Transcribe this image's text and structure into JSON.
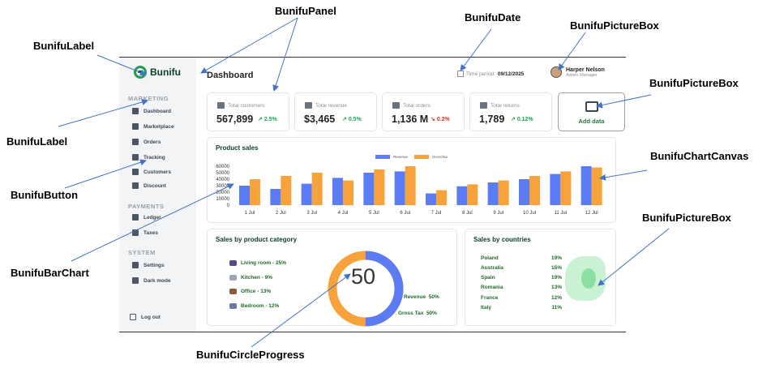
{
  "annotations": [
    {
      "id": "panel",
      "label": "BunifuPanel"
    },
    {
      "id": "date",
      "label": "BunifuDate"
    },
    {
      "id": "label1",
      "label": "BunifuLabel"
    },
    {
      "id": "picturebox1",
      "label": "BunifuPictureBox"
    },
    {
      "id": "picturebox2",
      "label": "BunifuPictureBox"
    },
    {
      "id": "label2",
      "label": "BunifuLabel"
    },
    {
      "id": "chartcanvas",
      "label": "BunifuChartCanvas"
    },
    {
      "id": "button",
      "label": "BunifuButton"
    },
    {
      "id": "picturebox3",
      "label": "BunifuPictureBox"
    },
    {
      "id": "barchart",
      "label": "BunifuBarChart"
    },
    {
      "id": "circleprogress",
      "label": "BunifuCircleProgress"
    }
  ],
  "app": {
    "logo_text": "Bunifu",
    "title": "Dashboard",
    "period_label": "Time period:",
    "period_value": "09/12/2025",
    "user_name": "Harper Nelson",
    "user_role": "Admin Manager"
  },
  "sidebar": {
    "sections": [
      {
        "title": "MARKETING",
        "items": [
          "Dashboard",
          "Marketplace",
          "Orders",
          "Tracking",
          "Customers",
          "Discount"
        ]
      },
      {
        "title": "PAYMENTS",
        "items": [
          "Ledger",
          "Taxes"
        ]
      },
      {
        "title": "SYSTEM",
        "items": [
          "Settings",
          "Dark mode"
        ]
      }
    ],
    "logout": "Log out"
  },
  "cards": [
    {
      "label": "Total customers",
      "value": "567,899",
      "change": "2.5%",
      "dir": "up"
    },
    {
      "label": "Total revenue",
      "value": "$3,465",
      "change": "0.5%",
      "dir": "up"
    },
    {
      "label": "Total orders",
      "value": "1,136 M",
      "change": "0.2%",
      "dir": "down"
    },
    {
      "label": "Total returns",
      "value": "1,789",
      "change": "0.12%",
      "dir": "up"
    }
  ],
  "add_data_label": "Add data",
  "product_sales_title": "Product sales",
  "sales_category_title": "Sales by product category",
  "categories": [
    {
      "name": "Living room - 25%"
    },
    {
      "name": "Kitchen - 9%"
    },
    {
      "name": "Office - 13%"
    },
    {
      "name": "Bedroom - 12%"
    }
  ],
  "circle_progress": {
    "value": "50",
    "fraction": 0.5,
    "revenue_label": "Revenue",
    "revenue_pct": "50%",
    "gross_label": "Gross Tax",
    "gross_pct": "50%"
  },
  "countries_title": "Sales by countries",
  "countries": [
    {
      "name": "Poland",
      "pct": "19%"
    },
    {
      "name": "Australia",
      "pct": "15%"
    },
    {
      "name": "Spain",
      "pct": "19%"
    },
    {
      "name": "Romania",
      "pct": "13%"
    },
    {
      "name": "France",
      "pct": "12%"
    },
    {
      "name": "Italy",
      "pct": "11%"
    }
  ],
  "colors": {
    "revenue": "#5b7cf5",
    "gross": "#f7a23b"
  },
  "chart_data": {
    "type": "bar",
    "title": "Product sales",
    "categories": [
      "1 Jul",
      "2 Jul",
      "3 Jul",
      "4 Jul",
      "5 Jul",
      "6 Jul",
      "7 Jul",
      "8 Jul",
      "9 Jul",
      "10 Jul",
      "11 Jul",
      "12 Jul"
    ],
    "series": [
      {
        "name": "Revenue",
        "values": [
          30000,
          25000,
          33000,
          42000,
          50000,
          52000,
          18000,
          29000,
          35000,
          40000,
          48000,
          60000
        ]
      },
      {
        "name": "GrossTax",
        "values": [
          40000,
          45000,
          50000,
          38000,
          55000,
          60000,
          23000,
          32000,
          38000,
          45000,
          52000,
          58000
        ]
      }
    ],
    "yticks": [
      "60000",
      "50000",
      "40000",
      "30000",
      "20000",
      "10000",
      "0"
    ],
    "ylim": [
      0,
      60000
    ],
    "xlabel": "",
    "ylabel": ""
  }
}
